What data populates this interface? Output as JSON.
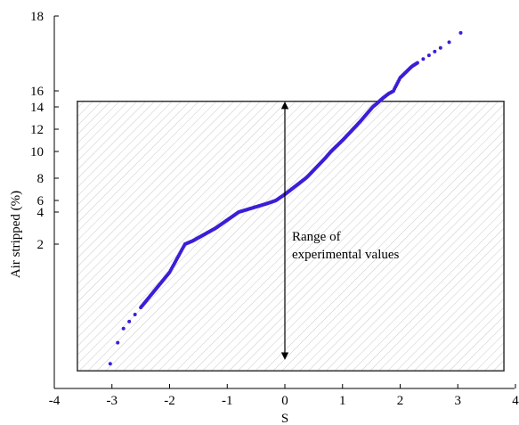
{
  "chart_data": {
    "type": "scatter",
    "title": "",
    "xlabel": "S",
    "ylabel": "Air stripped (%)",
    "xlim": [
      -4,
      4
    ],
    "x_ticks": [
      -4,
      -3,
      -2,
      -1,
      0,
      1,
      2,
      3,
      4
    ],
    "y_scale": "nonlinear (probability-type axis, tick labels as printed)",
    "y_ticks": [
      {
        "label": "18",
        "value": 18
      },
      {
        "label": "16",
        "value": 16
      },
      {
        "label": "14",
        "value": 14
      },
      {
        "label": "12",
        "value": 12
      },
      {
        "label": "10",
        "value": 10
      },
      {
        "label": "8",
        "value": 8
      },
      {
        "label": "6",
        "value": 6
      },
      {
        "label": "4",
        "value": 4
      },
      {
        "label": "2",
        "value": 2
      }
    ],
    "grid": false,
    "series": [
      {
        "color": "#3a1fd6",
        "x": [
          -3.03,
          -2.9,
          -2.8,
          -2.7,
          -2.6,
          -2.5,
          -2.4,
          -2.3,
          -2.2,
          -2.1,
          -2.0,
          -1.9,
          -1.8,
          -1.7,
          -1.6,
          -1.5,
          -1.4,
          -1.3,
          -1.2,
          -1.1,
          -1.0,
          -0.9,
          -0.8,
          -0.7,
          -0.6,
          -0.5,
          -0.4,
          -0.3,
          -0.2,
          -0.1,
          0.0,
          0.1,
          0.2,
          0.3,
          0.4,
          0.5,
          0.6,
          0.7,
          0.8,
          0.9,
          1.0,
          1.1,
          1.2,
          1.3,
          1.4,
          1.5,
          1.6,
          1.7,
          1.8,
          1.9,
          2.0,
          2.1,
          2.2,
          2.3,
          2.4,
          2.5,
          2.6,
          2.7,
          2.85,
          3.05
        ],
        "y": [
          0.3,
          0.6,
          0.8,
          0.9,
          1.0,
          1.1,
          1.2,
          1.3,
          1.4,
          1.5,
          1.6,
          1.75,
          1.9,
          2.05,
          2.2,
          2.4,
          2.6,
          2.8,
          3.0,
          3.25,
          3.5,
          3.75,
          4.0,
          4.3,
          4.6,
          4.9,
          5.2,
          5.5,
          5.85,
          6.2,
          6.55,
          6.95,
          7.35,
          7.75,
          8.15,
          8.6,
          9.05,
          9.5,
          10.0,
          10.5,
          11.0,
          11.55,
          12.1,
          12.65,
          13.25,
          13.85,
          14.45,
          15.1,
          15.65,
          16.05,
          16.35,
          16.5,
          16.65,
          16.75,
          16.85,
          16.95,
          17.05,
          17.15,
          17.3,
          17.55
        ]
      }
    ],
    "shaded_region": {
      "label": "Range of experimental values",
      "x_range": [
        -3.6,
        3.8
      ],
      "y_range": [
        0.2,
        14.7
      ]
    },
    "annotation": {
      "lines": [
        "Range of",
        "experimental values"
      ]
    }
  }
}
